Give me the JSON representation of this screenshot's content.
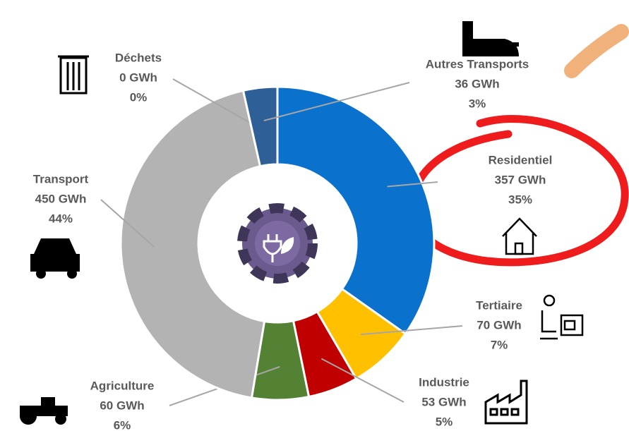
{
  "chart_data": {
    "type": "donut",
    "categories": [
      "Residentiel",
      "Tertiaire",
      "Industrie",
      "Agriculture",
      "Transport",
      "Déchets",
      "Autres Transports"
    ],
    "values": [
      357,
      70,
      53,
      60,
      450,
      0,
      36
    ],
    "value_labels": [
      "357 GWh",
      "70 GWh",
      "53 GWh",
      "60 GWh",
      "450 GWh",
      "0 GWh",
      "36 GWh"
    ],
    "percent_labels": [
      "35%",
      "7%",
      "5%",
      "6%",
      "44%",
      "0%",
      "3%"
    ],
    "colors": [
      "#0a72cc",
      "#ffc000",
      "#c00000",
      "#548235",
      "#b3b3b3",
      "#2e75b6",
      "#2e5f96"
    ]
  }
}
